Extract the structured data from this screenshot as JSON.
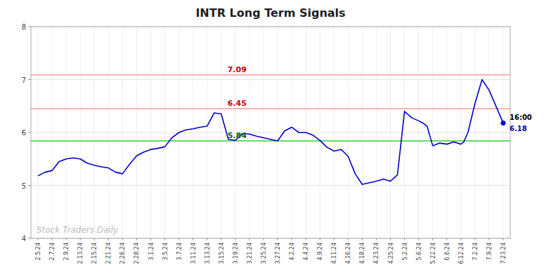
{
  "chart_data": {
    "type": "line",
    "title": "INTR Long Term Signals",
    "color": "#0000cc",
    "grid": true,
    "x": [
      0,
      0.5,
      1,
      1.5,
      2,
      2.5,
      3,
      3.5,
      4,
      4.5,
      5,
      5.5,
      6,
      6.5,
      7,
      7.5,
      8,
      8.5,
      9,
      9.5,
      10,
      10.5,
      11,
      11.5,
      12,
      12.5,
      13,
      13.5,
      14,
      14.5,
      15,
      15.5,
      16,
      16.5,
      17,
      17.5,
      18,
      18.5,
      19,
      19.5,
      20,
      20.5,
      21,
      21.5,
      22,
      22.5,
      23,
      23.5,
      24,
      24.5,
      25,
      25.5,
      26,
      26.5,
      27,
      27.3,
      27.6,
      28,
      28.5,
      29,
      29.5,
      30,
      30.2,
      30.5,
      31,
      31.5,
      32,
      33
    ],
    "values": [
      5.18,
      5.25,
      5.28,
      5.45,
      5.5,
      5.52,
      5.5,
      5.42,
      5.38,
      5.35,
      5.33,
      5.25,
      5.22,
      5.4,
      5.56,
      5.63,
      5.68,
      5.7,
      5.73,
      5.9,
      6.0,
      6.05,
      6.07,
      6.1,
      6.12,
      6.37,
      6.35,
      5.87,
      5.85,
      5.98,
      5.97,
      5.93,
      5.9,
      5.87,
      5.84,
      6.03,
      6.1,
      6.0,
      6.0,
      5.95,
      5.85,
      5.72,
      5.65,
      5.68,
      5.55,
      5.22,
      5.02,
      5.05,
      5.08,
      5.12,
      5.08,
      5.2,
      6.4,
      6.28,
      6.22,
      6.18,
      6.12,
      5.75,
      5.8,
      5.78,
      5.82,
      5.78,
      5.82,
      6.0,
      6.55,
      7.0,
      6.8,
      6.18
    ],
    "xlim": [
      -0.5,
      33.5
    ],
    "xticks": [
      {
        "value": 0,
        "label": "2.5.24"
      },
      {
        "value": 1,
        "label": "2.7.24"
      },
      {
        "value": 2,
        "label": "2.9.24"
      },
      {
        "value": 3,
        "label": "2.13.24"
      },
      {
        "value": 4,
        "label": "2.15.24"
      },
      {
        "value": 5,
        "label": "2.21.24"
      },
      {
        "value": 6,
        "label": "2.26.24"
      },
      {
        "value": 7,
        "label": "2.28.24"
      },
      {
        "value": 8,
        "label": "3.1.24"
      },
      {
        "value": 9,
        "label": "3.5.24"
      },
      {
        "value": 10,
        "label": "3.7.24"
      },
      {
        "value": 11,
        "label": "3.11.24"
      },
      {
        "value": 12,
        "label": "3.13.24"
      },
      {
        "value": 13,
        "label": "3.15.24"
      },
      {
        "value": 14,
        "label": "3.19.24"
      },
      {
        "value": 15,
        "label": "3.21.24"
      },
      {
        "value": 16,
        "label": "3.25.24"
      },
      {
        "value": 17,
        "label": "3.27.24"
      },
      {
        "value": 18,
        "label": "4.2.24"
      },
      {
        "value": 19,
        "label": "4.4.24"
      },
      {
        "value": 20,
        "label": "4.9.24"
      },
      {
        "value": 21,
        "label": "4.11.24"
      },
      {
        "value": 22,
        "label": "4.16.24"
      },
      {
        "value": 23,
        "label": "4.18.24"
      },
      {
        "value": 24,
        "label": "4.23.24"
      },
      {
        "value": 25,
        "label": "4.25.24"
      },
      {
        "value": 26,
        "label": "5.2.24"
      },
      {
        "value": 27,
        "label": "5.6.24"
      },
      {
        "value": 28,
        "label": "5.22.24"
      },
      {
        "value": 29,
        "label": "6.6.24"
      },
      {
        "value": 30,
        "label": "6.12.24"
      },
      {
        "value": 31,
        "label": "7.2.24"
      },
      {
        "value": 32,
        "label": "7.9.24"
      },
      {
        "value": 33,
        "label": "7.23.24"
      }
    ],
    "ylim": [
      4.0,
      8.0
    ],
    "yticks": [
      4,
      5,
      6,
      7,
      8
    ],
    "hlines": [
      {
        "value": 7.09,
        "label": "7.09",
        "color": "#ff9999",
        "label_color": "#cc0000"
      },
      {
        "value": 6.45,
        "label": "6.45",
        "color": "#ff9999",
        "label_color": "#cc0000"
      },
      {
        "value": 5.84,
        "label": "5.84",
        "color": "#33cc33",
        "label_color": "#006600"
      }
    ],
    "end_point": {
      "time_label": "16:00",
      "value_label": "6.18",
      "value_color": "#0000cc"
    },
    "watermark": {
      "text": "Stock Traders Daily",
      "color": "#bbbbbb"
    }
  }
}
